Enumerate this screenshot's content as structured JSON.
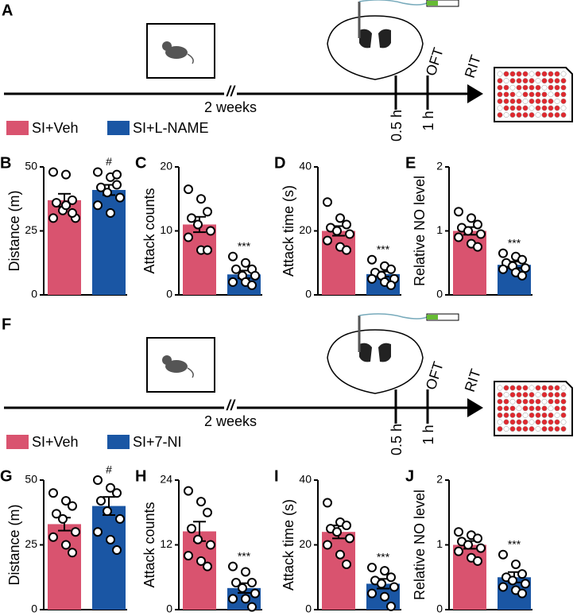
{
  "rows": [
    {
      "label": "A",
      "break_mark": "//",
      "duration": "2 weeks",
      "times": [
        "0.5 h",
        "1 h"
      ],
      "tests": [
        "OFT",
        "RIT"
      ],
      "legend": [
        {
          "name": "SI+Veh",
          "color": "#d9536f"
        },
        {
          "name": "SI+L-NAME",
          "color": "#1a56a4"
        }
      ]
    },
    {
      "label": "F",
      "break_mark": "//",
      "duration": "2 weeks",
      "times": [
        "0.5 h",
        "1 h"
      ],
      "tests": [
        "OFT",
        "RIT"
      ],
      "legend": [
        {
          "name": "SI+Veh",
          "color": "#d9536f"
        },
        {
          "name": "SI+7-NI",
          "color": "#1a56a4"
        }
      ]
    }
  ],
  "chart_data": [
    {
      "type": "bar",
      "panel": "B",
      "ylabel": "Distance (m)",
      "ylim": [
        0,
        50
      ],
      "yticks": [
        0,
        25,
        50
      ],
      "series": [
        {
          "color": "#d9536f",
          "values": [
            37
          ],
          "error": [
            2.5
          ],
          "points": [
            48,
            47,
            37,
            36,
            33,
            30,
            30,
            35,
            32
          ]
        },
        {
          "color": "#1a56a4",
          "values": [
            41
          ],
          "error": [
            2
          ],
          "points": [
            48,
            46,
            43,
            42,
            40,
            38,
            35,
            32,
            47
          ],
          "annotation": "#"
        }
      ]
    },
    {
      "type": "bar",
      "panel": "C",
      "ylabel": "Attack counts",
      "ylim": [
        0,
        20
      ],
      "yticks": [
        0,
        10,
        20
      ],
      "series": [
        {
          "color": "#d9536f",
          "values": [
            11
          ],
          "error": [
            1.2
          ],
          "points": [
            16.5,
            15,
            13,
            12,
            11,
            10,
            9,
            7,
            7
          ]
        },
        {
          "color": "#1a56a4",
          "values": [
            3.2
          ],
          "error": [
            0.6
          ],
          "points": [
            6,
            5,
            4,
            4,
            3,
            3,
            2,
            2,
            1.5
          ],
          "annotation": "***"
        }
      ]
    },
    {
      "type": "bar",
      "panel": "D",
      "ylabel": "Attack time (s)",
      "ylim": [
        0,
        40
      ],
      "yticks": [
        0,
        20,
        40
      ],
      "series": [
        {
          "color": "#d9536f",
          "values": [
            20
          ],
          "error": [
            1.5
          ],
          "points": [
            29,
            24,
            22,
            21,
            20,
            19,
            17,
            15,
            14
          ]
        },
        {
          "color": "#1a56a4",
          "values": [
            6.5
          ],
          "error": [
            0.8
          ],
          "points": [
            11,
            9,
            8,
            7,
            6,
            5,
            5,
            4,
            3
          ],
          "annotation": "***"
        }
      ]
    },
    {
      "type": "bar",
      "panel": "E",
      "ylabel": "Relative NO level",
      "ylim": [
        0,
        2
      ],
      "yticks": [
        0,
        1,
        2
      ],
      "series": [
        {
          "color": "#d9536f",
          "values": [
            1.0
          ],
          "error": [
            0.06
          ],
          "points": [
            1.3,
            1.2,
            1.1,
            1.05,
            1.0,
            0.95,
            0.9,
            0.8,
            0.75
          ]
        },
        {
          "color": "#1a56a4",
          "values": [
            0.47
          ],
          "error": [
            0.05
          ],
          "points": [
            0.65,
            0.6,
            0.55,
            0.5,
            0.45,
            0.42,
            0.4,
            0.35,
            0.3
          ],
          "annotation": "***"
        }
      ]
    },
    {
      "type": "bar",
      "panel": "G",
      "ylabel": "Distance (m)",
      "ylim": [
        0,
        50
      ],
      "yticks": [
        0,
        25,
        50
      ],
      "series": [
        {
          "color": "#d9536f",
          "values": [
            33
          ],
          "error": [
            2.5
          ],
          "points": [
            45,
            42,
            40,
            37,
            35,
            30,
            28,
            25,
            22
          ]
        },
        {
          "color": "#1a56a4",
          "values": [
            40
          ],
          "error": [
            3.5
          ],
          "points": [
            50,
            47,
            45,
            42,
            38,
            35,
            30,
            27,
            23
          ],
          "annotation": "#"
        }
      ]
    },
    {
      "type": "bar",
      "panel": "H",
      "ylabel": "Attack counts",
      "ylim": [
        0,
        24
      ],
      "yticks": [
        0,
        12,
        24
      ],
      "series": [
        {
          "color": "#d9536f",
          "values": [
            14.5
          ],
          "error": [
            1.8
          ],
          "points": [
            22,
            20,
            18,
            15,
            13,
            12,
            10,
            9,
            8
          ]
        },
        {
          "color": "#1a56a4",
          "values": [
            4
          ],
          "error": [
            0.9
          ],
          "points": [
            8,
            7,
            5,
            5,
            4,
            3,
            2,
            2,
            0.5
          ],
          "annotation": "***"
        }
      ]
    },
    {
      "type": "bar",
      "panel": "I",
      "ylabel": "Attack time (s)",
      "ylim": [
        0,
        40
      ],
      "yticks": [
        0,
        20,
        40
      ],
      "series": [
        {
          "color": "#d9536f",
          "values": [
            24
          ],
          "error": [
            2
          ],
          "points": [
            33,
            27,
            26,
            25,
            24,
            22,
            20,
            17,
            14
          ]
        },
        {
          "color": "#1a56a4",
          "values": [
            8
          ],
          "error": [
            1.5
          ],
          "points": [
            13,
            12,
            10,
            9,
            8,
            7,
            5,
            4,
            1
          ],
          "annotation": "***"
        }
      ]
    },
    {
      "type": "bar",
      "panel": "J",
      "ylabel": "Relative NO level",
      "ylim": [
        0,
        2
      ],
      "yticks": [
        0,
        1,
        2
      ],
      "series": [
        {
          "color": "#d9536f",
          "values": [
            1.0
          ],
          "error": [
            0.06
          ],
          "points": [
            1.2,
            1.15,
            1.1,
            1.05,
            1.0,
            0.95,
            0.9,
            0.8,
            0.75
          ]
        },
        {
          "color": "#1a56a4",
          "values": [
            0.5
          ],
          "error": [
            0.08
          ],
          "points": [
            0.85,
            0.7,
            0.55,
            0.5,
            0.45,
            0.4,
            0.35,
            0.3,
            0.25
          ],
          "annotation": "***"
        }
      ]
    }
  ]
}
